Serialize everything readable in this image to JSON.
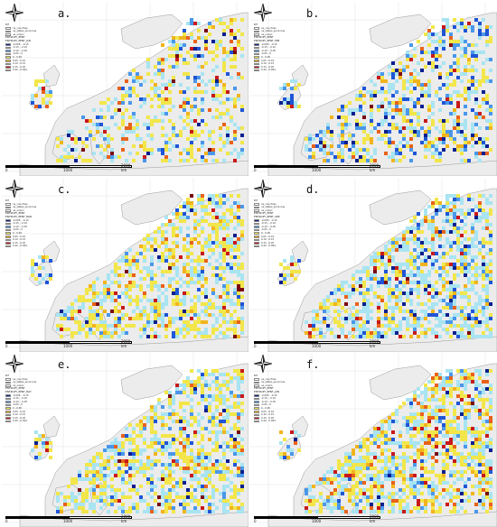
{
  "panels": [
    {
      "letter": "a.",
      "layer": "ENTROPY_PPNT_JAN"
    },
    {
      "letter": "b.",
      "layer": "ENTROPY_PPNT_FEB"
    },
    {
      "letter": "c.",
      "layer": "ENTROPY_PPNT_MAR"
    },
    {
      "letter": "d.",
      "layer": "ENTROPY_PPNT_APR"
    },
    {
      "letter": "e.",
      "layer": "ENTROPY_PPNT_MAY"
    },
    {
      "letter": "f.",
      "layer": "ENTROPY_PPNT_JUN"
    }
  ],
  "legend": {
    "header": "Rif",
    "base_layers": [
      "ne_countries",
      "ne_states_provinces",
      "ne_ocean"
    ],
    "group": "ENTROPY_PPNT",
    "classes": [
      {
        "label": "-0.095 - -0.15",
        "color": "#0a1f8f"
      },
      {
        "label": "-0.15 - -0.10",
        "color": "#1f55d6"
      },
      {
        "label": "-0.10 - -0.05",
        "color": "#4a97ea"
      },
      {
        "label": "-0.05 - 0",
        "color": "#a8e4f2"
      },
      {
        "label": "0 - 0.05",
        "color": "#f2e64a"
      },
      {
        "label": "0.05 - 0.10",
        "color": "#f2b41d"
      },
      {
        "label": "0.10 - 0.15",
        "color": "#e8621a"
      },
      {
        "label": "0.15 - 0.20",
        "color": "#c8191a"
      },
      {
        "label": "0.20 - 0.094",
        "color": "#7a0a12"
      }
    ]
  },
  "scale": {
    "t0": "0",
    "t1": "1000",
    "t2": "2000 km"
  },
  "colors": {
    "sea": "#ffffff",
    "land": "#ececec",
    "border": "#9a9a9a"
  }
}
